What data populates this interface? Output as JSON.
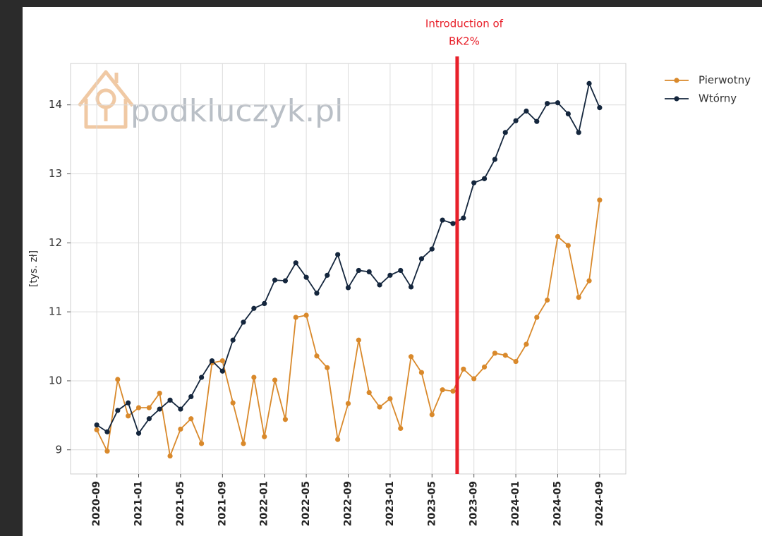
{
  "chart_data": {
    "type": "line",
    "ylabel": "[tys. zł]",
    "watermark": "podkluczyk.pl",
    "x": [
      "2020-09",
      "2020-10",
      "2020-11",
      "2020-12",
      "2021-01",
      "2021-02",
      "2021-03",
      "2021-04",
      "2021-05",
      "2021-06",
      "2021-07",
      "2021-08",
      "2021-09",
      "2021-10",
      "2021-11",
      "2021-12",
      "2022-01",
      "2022-02",
      "2022-03",
      "2022-04",
      "2022-05",
      "2022-06",
      "2022-07",
      "2022-08",
      "2022-09",
      "2022-10",
      "2022-11",
      "2022-12",
      "2023-01",
      "2023-02",
      "2023-03",
      "2023-04",
      "2023-05",
      "2023-06",
      "2023-07",
      "2023-08",
      "2023-09",
      "2023-10",
      "2023-11",
      "2023-12",
      "2024-01",
      "2024-02",
      "2024-03",
      "2024-04",
      "2024-05",
      "2024-06",
      "2024-07",
      "2024-08",
      "2024-09"
    ],
    "xticks": [
      "2020-09",
      "2021-01",
      "2021-05",
      "2021-09",
      "2022-01",
      "2022-05",
      "2022-09",
      "2023-01",
      "2023-05",
      "2023-09",
      "2024-01",
      "2024-05",
      "2024-09"
    ],
    "ylim": [
      8.65,
      14.6
    ],
    "yticks": [
      9,
      10,
      11,
      12,
      13,
      14
    ],
    "grid": true,
    "legend": "outside-right",
    "series": [
      {
        "name": "Pierwotny",
        "color": "#d9892b",
        "values": [
          9.29,
          8.98,
          10.02,
          9.49,
          9.61,
          9.61,
          9.82,
          8.91,
          9.3,
          9.45,
          9.09,
          10.26,
          10.29,
          9.68,
          9.09,
          10.05,
          9.19,
          10.01,
          9.44,
          10.92,
          10.95,
          10.36,
          10.19,
          9.15,
          9.67,
          10.59,
          9.83,
          9.62,
          9.74,
          9.31,
          10.35,
          10.12,
          9.51,
          9.87,
          9.85,
          10.17,
          10.03,
          10.2,
          10.4,
          10.37,
          10.28,
          10.53,
          10.92,
          11.17,
          12.09,
          11.96,
          11.21,
          11.45,
          12.62
        ]
      },
      {
        "name": "Wtórny",
        "color": "#14263d",
        "values": [
          9.36,
          9.26,
          9.57,
          9.68,
          9.24,
          9.45,
          9.59,
          9.72,
          9.59,
          9.77,
          10.05,
          10.29,
          10.14,
          10.59,
          10.85,
          11.05,
          11.12,
          11.46,
          11.45,
          11.71,
          11.5,
          11.27,
          11.53,
          11.83,
          11.35,
          11.6,
          11.58,
          11.39,
          11.53,
          11.6,
          11.36,
          11.77,
          11.91,
          12.33,
          12.28,
          12.36,
          12.87,
          12.93,
          13.21,
          13.6,
          13.77,
          13.91,
          13.76,
          14.02,
          14.03,
          13.87,
          13.6,
          14.31,
          13.96
        ]
      }
    ],
    "annotations": [
      {
        "text": [
          "Introduction of",
          "BK2%"
        ],
        "x": "2023-07",
        "color": "#e8202a"
      }
    ]
  }
}
